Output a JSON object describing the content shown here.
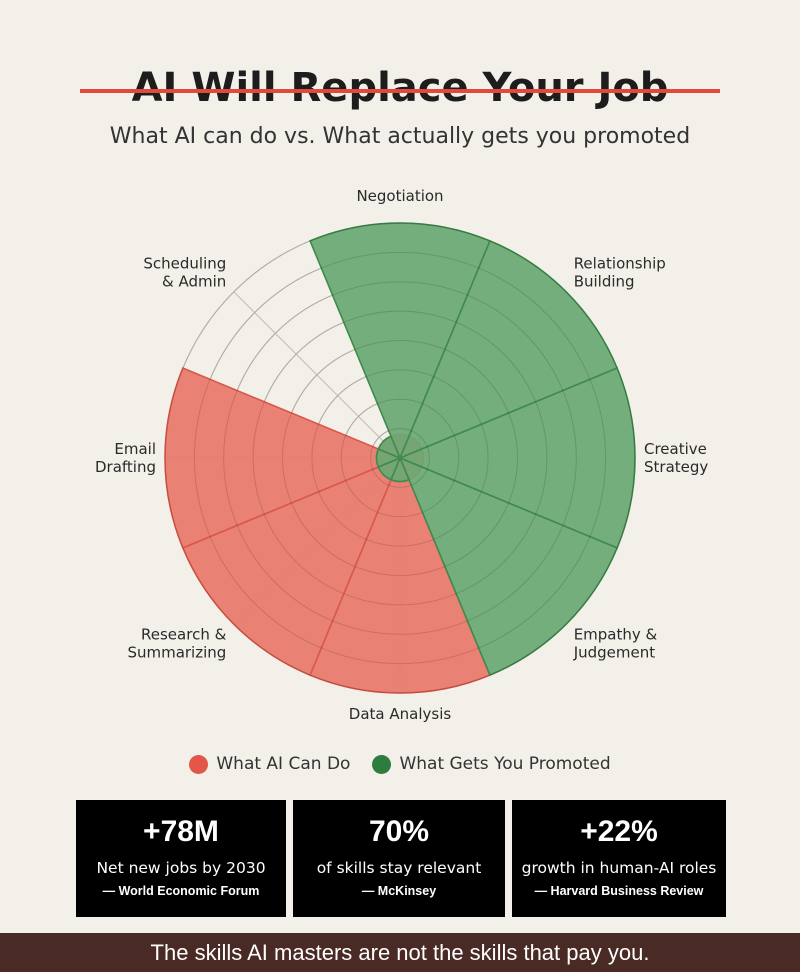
{
  "header": {
    "title": "AI Will Replace Your Job",
    "subtitle": "What AI can do vs. What actually gets you promoted"
  },
  "chart_data": {
    "type": "radar",
    "axes": [
      "Negotiation",
      "Relationship Building",
      "Creative Strategy",
      "Empathy & Judgement",
      "Data Analysis",
      "Research & Summarizing",
      "Email Drafting",
      "Scheduling & Admin"
    ],
    "axis_labels": [
      [
        "Negotiation"
      ],
      [
        "Relationship",
        "Building"
      ],
      [
        "Creative",
        "Strategy"
      ],
      [
        "Empathy &",
        "Judgement"
      ],
      [
        "Data Analysis"
      ],
      [
        "Research &",
        "Summarizing"
      ],
      [
        "Email",
        "Drafting"
      ],
      [
        "Scheduling",
        "& Admin"
      ]
    ],
    "rlim": [
      0,
      10
    ],
    "grid": true,
    "series": [
      {
        "name": "What AI Can Do",
        "color": "#e8786a",
        "stroke": "#d9584a",
        "values": [
          1,
          1,
          1,
          1,
          10,
          10,
          10,
          1
        ]
      },
      {
        "name": "What Gets You Promoted",
        "color": "#6aa873",
        "stroke": "#3f8a4c",
        "values": [
          10,
          10,
          10,
          10,
          1,
          1,
          1,
          1
        ]
      }
    ]
  },
  "legend": {
    "ai_label": "What AI Can Do",
    "promoted_label": "What Gets You Promoted",
    "ai_color": "#e2574a",
    "promoted_color": "#2e7d3e"
  },
  "stats": [
    {
      "value": "+78M",
      "desc": "Net new jobs by 2030",
      "source": "— World Economic Forum"
    },
    {
      "value": "70%",
      "desc": "of skills stay relevant",
      "source": "— McKinsey"
    },
    {
      "value": "+22%",
      "desc": "growth in human-AI roles",
      "source": "— Harvard Business Review"
    }
  ],
  "footer": {
    "tagline": "The skills AI masters are not the skills that pay you."
  }
}
